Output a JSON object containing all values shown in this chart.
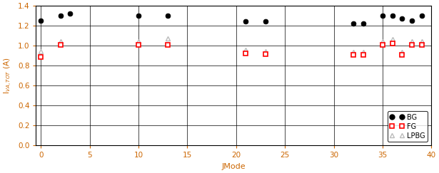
{
  "xlabel": "JMode",
  "ylabel": "I$_{VA,TOT}$ (A)",
  "xlim": [
    -0.5,
    40
  ],
  "ylim": [
    0,
    1.4
  ],
  "yticks": [
    0,
    0.2,
    0.4,
    0.6,
    0.8,
    1.0,
    1.2,
    1.4
  ],
  "xticks": [
    0,
    5,
    10,
    15,
    20,
    25,
    30,
    35,
    40
  ],
  "xtick_color": "#cc6600",
  "ytick_color": "#cc6600",
  "BG": {
    "x": [
      0,
      2,
      3,
      10,
      13,
      21,
      23,
      32,
      33,
      35,
      36,
      37,
      38,
      39
    ],
    "y": [
      1.25,
      1.3,
      1.32,
      1.3,
      1.3,
      1.245,
      1.245,
      1.22,
      1.22,
      1.3,
      1.3,
      1.27,
      1.25,
      1.3
    ],
    "color": "black",
    "marker": "o",
    "markersize": 5,
    "label": "BG"
  },
  "FG": {
    "x": [
      0,
      2,
      10,
      13,
      21,
      23,
      32,
      33,
      35,
      36,
      37,
      38,
      39
    ],
    "y": [
      0.885,
      1.005,
      1.005,
      1.01,
      0.925,
      0.915,
      0.905,
      0.905,
      1.005,
      1.025,
      0.905,
      1.005,
      1.005
    ],
    "color": "red",
    "marker": "s",
    "markersize": 5,
    "label": "FG"
  },
  "LPBG": {
    "x": [
      0,
      2,
      10,
      13,
      21,
      23,
      32,
      33,
      35,
      36,
      37,
      38,
      39
    ],
    "y": [
      0.945,
      1.045,
      1.045,
      1.07,
      0.955,
      0.945,
      0.935,
      0.935,
      1.045,
      1.065,
      0.935,
      1.045,
      1.045
    ],
    "color": "#bbbbbb",
    "marker": "^",
    "markersize": 5,
    "label": "LPBG"
  },
  "figsize": [
    6.15,
    2.43
  ],
  "dpi": 100
}
